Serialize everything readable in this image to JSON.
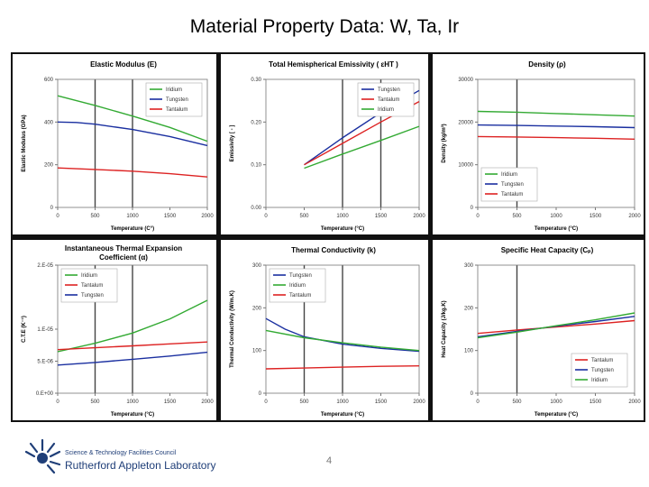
{
  "slide": {
    "title": "Material Property Data: W, Ta, Ir",
    "page_number": "4",
    "logo": {
      "line1": "Science & Technology Facilities Council",
      "line2": "Rutherford Appleton Laboratory",
      "color": "#1f3e78"
    }
  },
  "colors": {
    "Iridium": "#33aa33",
    "Tungsten": "#1a2fa0",
    "Tantalum": "#dd2222"
  },
  "chart_data": [
    {
      "type": "line",
      "title": "Elastic Modulus (E)",
      "xlabel": "Temperature (C°)",
      "ylabel": "Elastic Modulus (GPa)",
      "xlim": [
        0,
        2000
      ],
      "ylim": [
        0,
        600
      ],
      "xticks": [
        0,
        500,
        1000,
        1500,
        2000
      ],
      "yticks": [
        0,
        200,
        400,
        600
      ],
      "ytick_labels": [
        "0",
        "200",
        "400",
        "600"
      ],
      "grid_x": [
        500,
        1000
      ],
      "legend": {
        "position": "top-right",
        "order": [
          "Iridium",
          "Tungsten",
          "Tantalum"
        ]
      },
      "series": [
        {
          "name": "Iridium",
          "color": "#33aa33",
          "x": [
            0,
            500,
            1000,
            1500,
            2000
          ],
          "y": [
            523,
            478,
            428,
            375,
            310
          ]
        },
        {
          "name": "Tungsten",
          "color": "#1a2fa0",
          "x": [
            0,
            250,
            500,
            1000,
            1500,
            2000
          ],
          "y": [
            400,
            398,
            390,
            365,
            332,
            290
          ]
        },
        {
          "name": "Tantalum",
          "color": "#dd2222",
          "x": [
            0,
            500,
            1000,
            1500,
            2000
          ],
          "y": [
            185,
            178,
            170,
            158,
            143
          ]
        }
      ]
    },
    {
      "type": "line",
      "title": "Total Hemispherical Emissivity ( εHT )",
      "xlabel": "Temperature (°C)",
      "ylabel": "Emissivity [ - ]",
      "xlim": [
        0,
        2000
      ],
      "ylim": [
        0,
        0.3
      ],
      "xticks": [
        0,
        500,
        1000,
        1500,
        2000
      ],
      "yticks": [
        0,
        0.1,
        0.2,
        0.3
      ],
      "ytick_labels": [
        "0.00",
        "0.10",
        "0.20",
        "0.30"
      ],
      "grid_x": [
        1000,
        1500
      ],
      "legend": {
        "position": "top-right",
        "order": [
          "Tungsten",
          "Tantalum",
          "Iridium"
        ]
      },
      "series": [
        {
          "name": "Tungsten",
          "color": "#1a2fa0",
          "x": [
            500,
            1000,
            1500,
            2000
          ],
          "y": [
            0.1,
            0.163,
            0.222,
            0.274
          ]
        },
        {
          "name": "Tantalum",
          "color": "#dd2222",
          "x": [
            500,
            1000,
            1500,
            2000
          ],
          "y": [
            0.1,
            0.15,
            0.2,
            0.248
          ]
        },
        {
          "name": "Iridium",
          "color": "#33aa33",
          "x": [
            500,
            1000,
            1500,
            2000
          ],
          "y": [
            0.092,
            0.125,
            0.157,
            0.19
          ]
        }
      ]
    },
    {
      "type": "line",
      "title": "Density (ρ)",
      "xlabel": "Temperature (°C)",
      "ylabel": "Density (kg/m³)",
      "xlim": [
        0,
        2000
      ],
      "ylim": [
        0,
        30000
      ],
      "xticks": [
        0,
        500,
        1000,
        1500,
        2000
      ],
      "yticks": [
        0,
        10000,
        20000,
        30000
      ],
      "ytick_labels": [
        "0",
        "10000",
        "20000",
        "30000"
      ],
      "grid_x": [
        500
      ],
      "legend": {
        "position": "bottom-left",
        "order": [
          "Iridium",
          "Tungsten",
          "Tantalum"
        ]
      },
      "series": [
        {
          "name": "Iridium",
          "color": "#33aa33",
          "x": [
            0,
            500,
            1000,
            1500,
            2000
          ],
          "y": [
            22500,
            22300,
            22000,
            21700,
            21400
          ]
        },
        {
          "name": "Tungsten",
          "color": "#1a2fa0",
          "x": [
            0,
            500,
            1000,
            1500,
            2000
          ],
          "y": [
            19300,
            19200,
            19050,
            18900,
            18700
          ]
        },
        {
          "name": "Tantalum",
          "color": "#dd2222",
          "x": [
            0,
            500,
            1000,
            1500,
            2000
          ],
          "y": [
            16600,
            16500,
            16350,
            16200,
            16000
          ]
        }
      ]
    },
    {
      "type": "line",
      "title": "Instantaneous Thermal Expansion",
      "subtitle": "Coefficient (α)",
      "xlabel": "Temperature (°C)",
      "ylabel": "C.T.E (K⁻¹)",
      "xlim": [
        0,
        2000
      ],
      "ylim": [
        0,
        2e-05
      ],
      "xticks": [
        0,
        500,
        1000,
        1500,
        2000
      ],
      "yticks": [
        0,
        5e-06,
        1e-05,
        1.5e-05,
        2e-05
      ],
      "ytick_labels": [
        "0.E+00",
        "5.E-06",
        "1.E-05",
        "",
        "2.E-05"
      ],
      "grid_x": [
        500,
        1000
      ],
      "legend": {
        "position": "top-left",
        "order": [
          "Iridium",
          "Tantalum",
          "Tungsten"
        ]
      },
      "series": [
        {
          "name": "Iridium",
          "color": "#33aa33",
          "x": [
            0,
            500,
            1000,
            1500,
            2000
          ],
          "y": [
            6.5e-06,
            7.8e-06,
            9.4e-06,
            1.16e-05,
            1.45e-05
          ]
        },
        {
          "name": "Tantalum",
          "color": "#dd2222",
          "x": [
            0,
            500,
            1000,
            1500,
            2000
          ],
          "y": [
            6.8e-06,
            7.1e-06,
            7.4e-06,
            7.7e-06,
            8e-06
          ]
        },
        {
          "name": "Tungsten",
          "color": "#1a2fa0",
          "x": [
            0,
            500,
            1000,
            1500,
            2000
          ],
          "y": [
            4.4e-06,
            4.8e-06,
            5.3e-06,
            5.8e-06,
            6.4e-06
          ]
        }
      ]
    },
    {
      "type": "line",
      "title": "Thermal Conductivity (k)",
      "xlabel": "Temperature (°C)",
      "ylabel": "Thermal Conductivity (W/m.K)",
      "xlim": [
        0,
        2000
      ],
      "ylim": [
        0,
        300
      ],
      "xticks": [
        0,
        500,
        1000,
        1500,
        2000
      ],
      "yticks": [
        0,
        100,
        200,
        300
      ],
      "ytick_labels": [
        "0",
        "100",
        "200",
        "300"
      ],
      "grid_x": [
        500,
        1000
      ],
      "legend": {
        "position": "top-left",
        "order": [
          "Tungsten",
          "Iridium",
          "Tantalum"
        ]
      },
      "series": [
        {
          "name": "Tungsten",
          "color": "#1a2fa0",
          "x": [
            0,
            250,
            500,
            1000,
            1500,
            2000
          ],
          "y": [
            175,
            150,
            132,
            115,
            105,
            98
          ]
        },
        {
          "name": "Iridium",
          "color": "#33aa33",
          "x": [
            0,
            500,
            1000,
            1500,
            2000
          ],
          "y": [
            147,
            130,
            118,
            108,
            100
          ]
        },
        {
          "name": "Tantalum",
          "color": "#dd2222",
          "x": [
            0,
            500,
            1000,
            1500,
            2000
          ],
          "y": [
            57,
            59,
            61,
            63,
            64
          ]
        }
      ]
    },
    {
      "type": "line",
      "title": "Specific Heat Capacity (Cₚ)",
      "xlabel": "Temperature (°C)",
      "ylabel": "Heat Capacity (J/kg.K)",
      "xlim": [
        0,
        2000
      ],
      "ylim": [
        0,
        300
      ],
      "xticks": [
        0,
        500,
        1000,
        1500,
        2000
      ],
      "yticks": [
        0,
        100,
        200,
        300
      ],
      "ytick_labels": [
        "0",
        "100",
        "200",
        "300"
      ],
      "grid_x": [
        500
      ],
      "legend": {
        "position": "bottom-right",
        "order": [
          "Tantalum",
          "Tungsten",
          "Iridium"
        ]
      },
      "series": [
        {
          "name": "Tantalum",
          "color": "#dd2222",
          "x": [
            0,
            500,
            1000,
            1500,
            2000
          ],
          "y": [
            140,
            148,
            155,
            162,
            170
          ]
        },
        {
          "name": "Tungsten",
          "color": "#1a2fa0",
          "x": [
            0,
            500,
            1000,
            1500,
            2000
          ],
          "y": [
            132,
            145,
            157,
            168,
            180
          ]
        },
        {
          "name": "Iridium",
          "color": "#33aa33",
          "x": [
            0,
            500,
            1000,
            1500,
            2000
          ],
          "y": [
            130,
            143,
            158,
            172,
            188
          ]
        }
      ]
    }
  ]
}
